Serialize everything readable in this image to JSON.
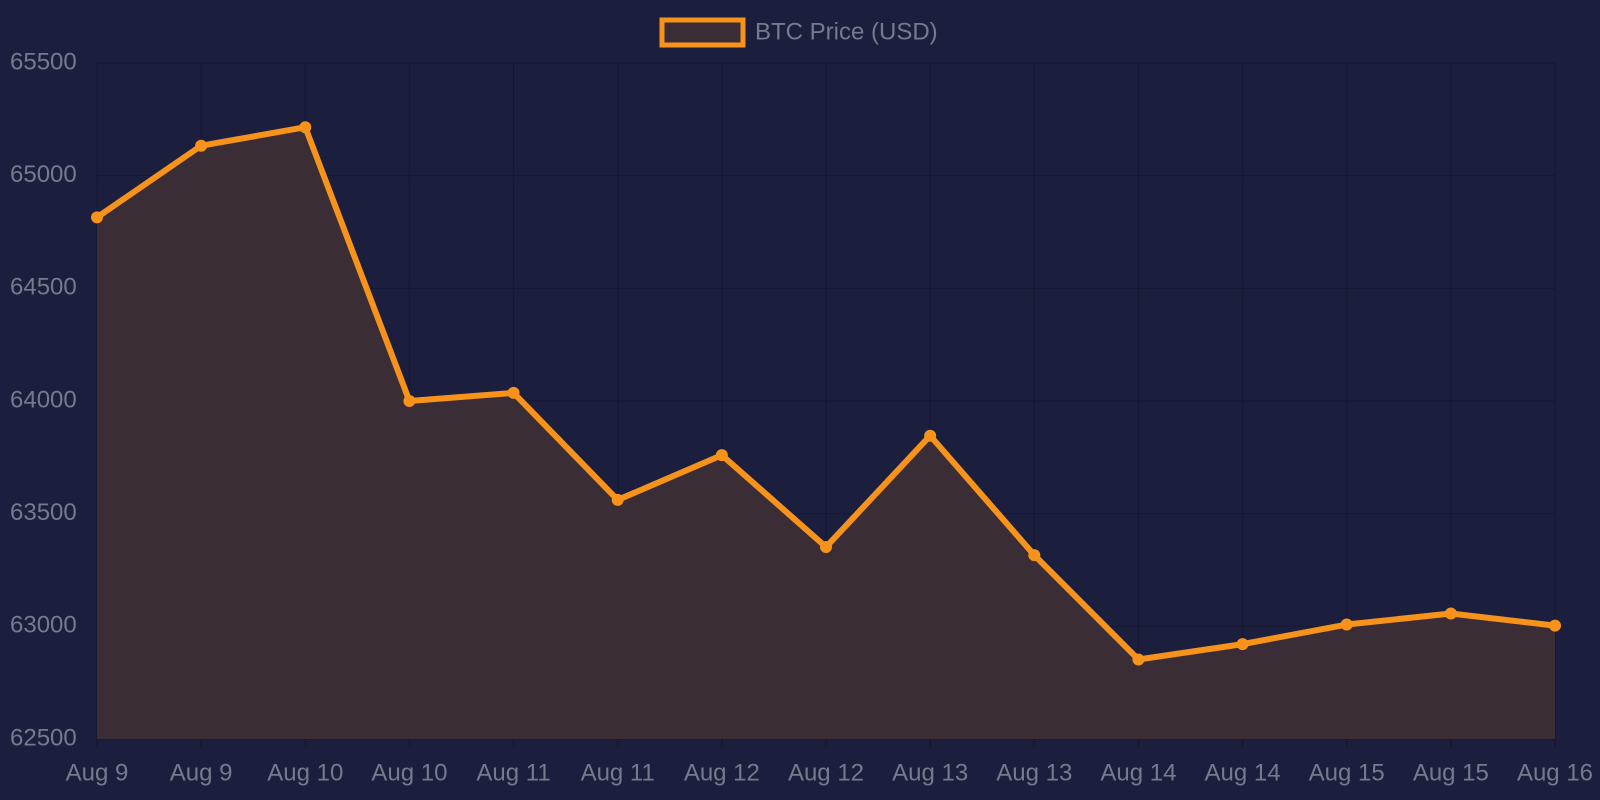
{
  "chart_data": {
    "type": "line",
    "categories": [
      "Aug 9",
      "Aug 9",
      "Aug 10",
      "Aug 10",
      "Aug 11",
      "Aug 11",
      "Aug 12",
      "Aug 12",
      "Aug 13",
      "Aug 13",
      "Aug 14",
      "Aug 14",
      "Aug 15",
      "Aug 15",
      "Aug 16"
    ],
    "series": [
      {
        "name": "BTC Price (USD)",
        "color": "#f7931a",
        "fill_color": "#3b2d35",
        "values": [
          64815,
          65133,
          65215,
          64000,
          64036,
          63561,
          63760,
          63352,
          63846,
          63316,
          62853,
          62921,
          63008,
          63057,
          63003
        ]
      }
    ],
    "ylim": [
      62500,
      65500
    ],
    "yticks": [
      62500,
      63000,
      63500,
      64000,
      64500,
      65000,
      65500
    ],
    "grid": true,
    "legend": "top"
  }
}
